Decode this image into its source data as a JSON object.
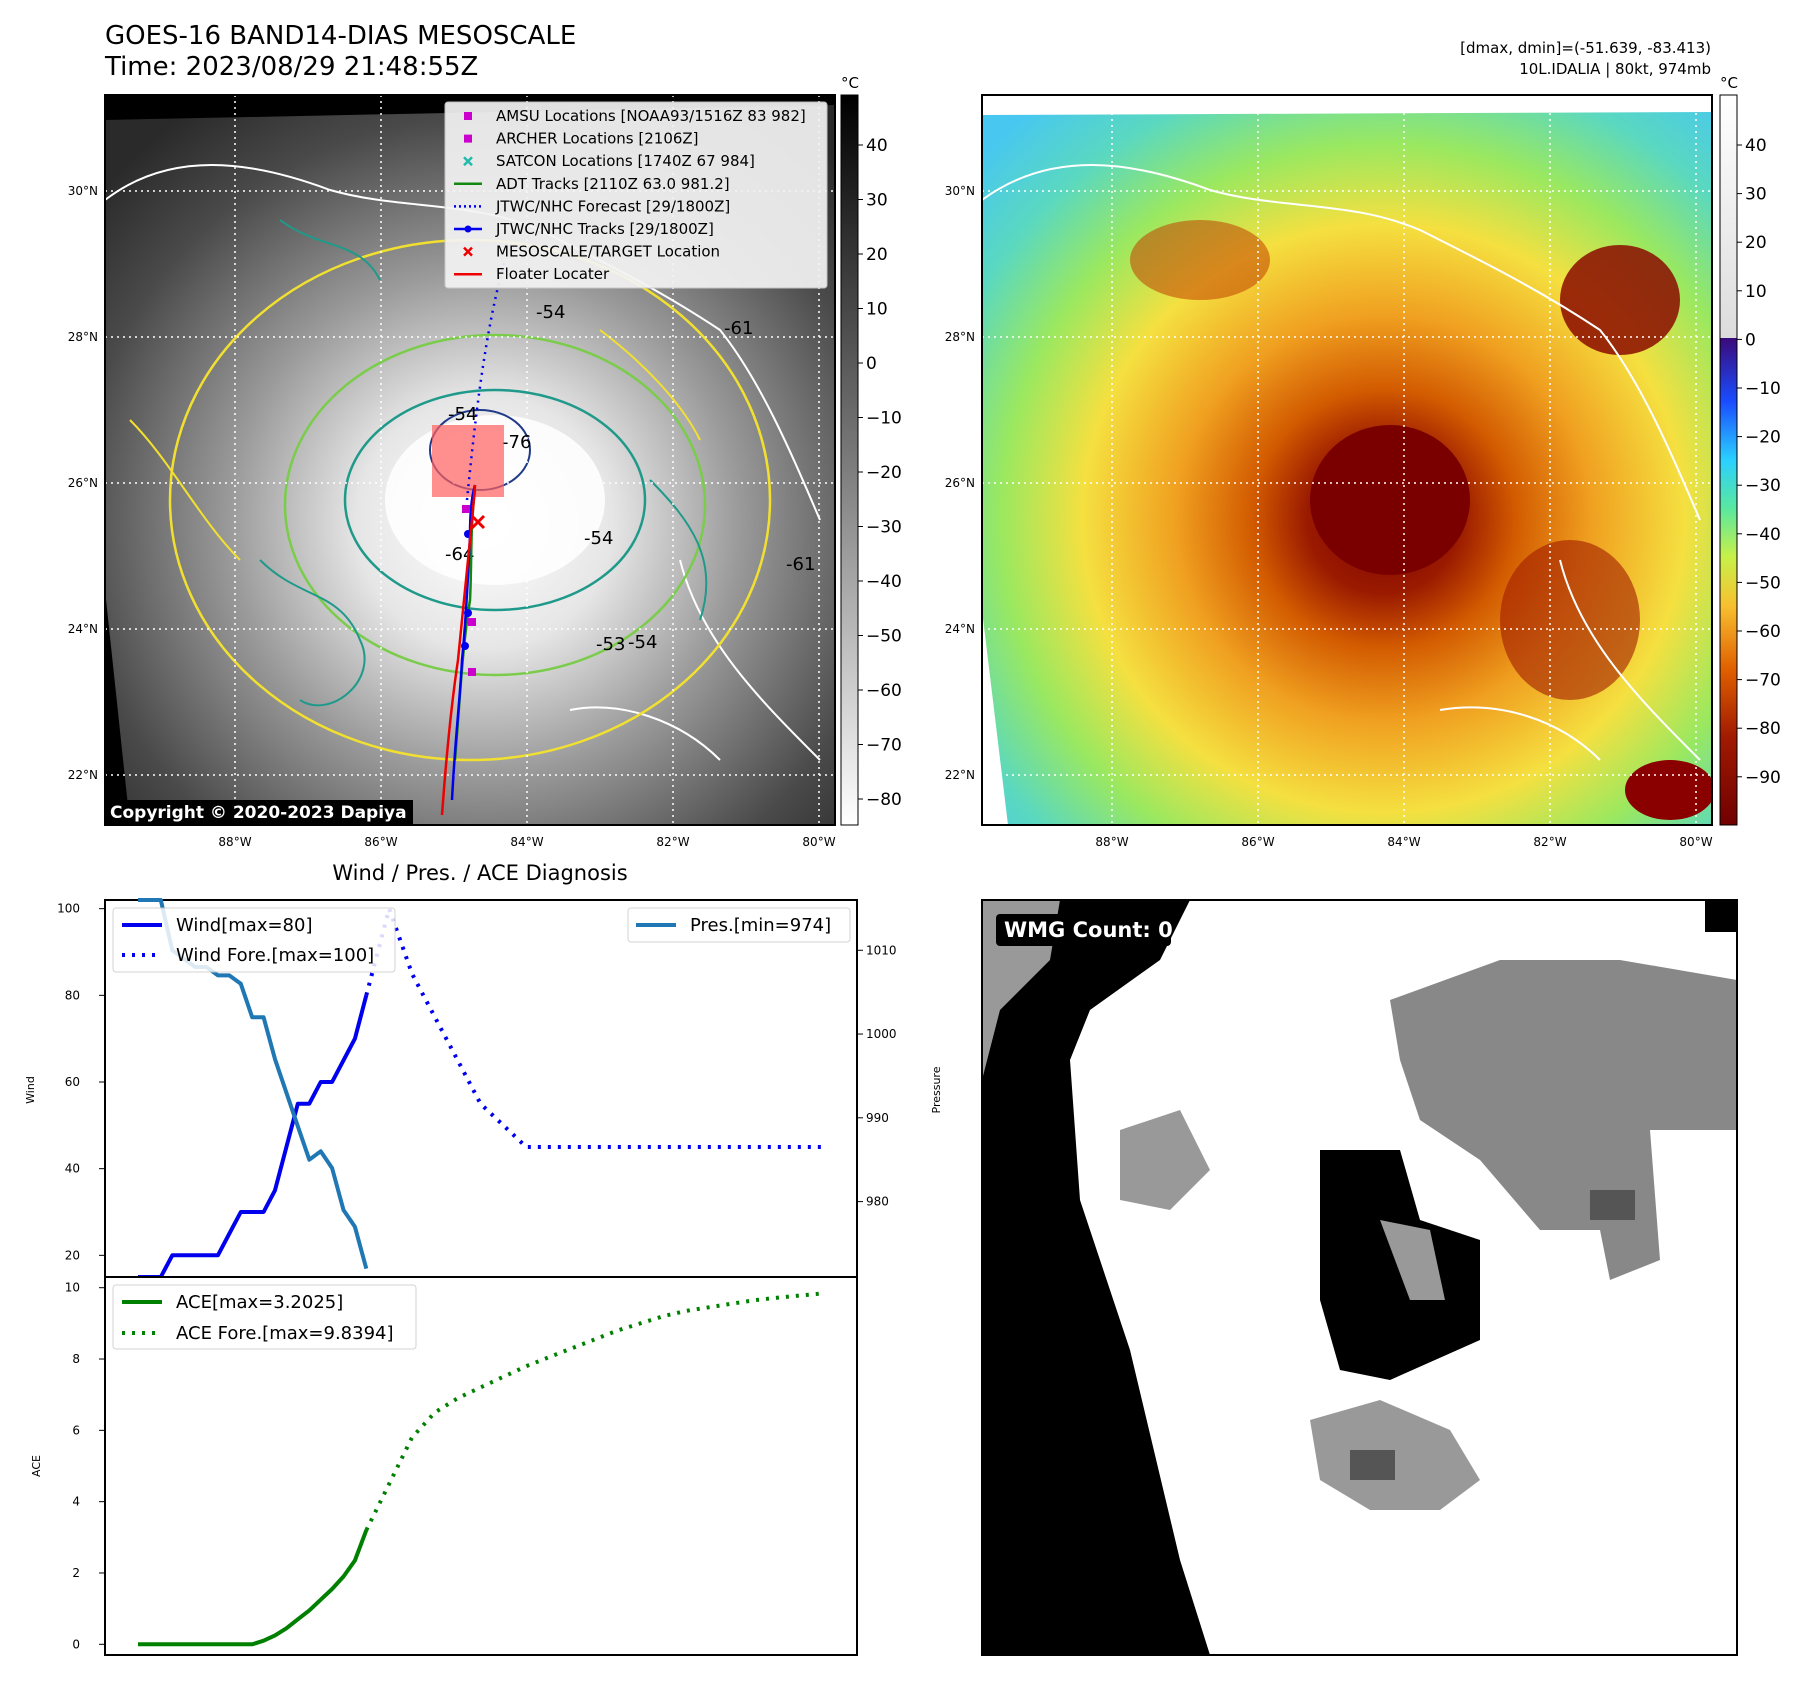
{
  "header": {
    "title": "GOES-16 BAND14-DIAS MESOSCALE",
    "time": "Time: 2023/08/29 21:48:55Z",
    "stats_line1": "[dmax, dmin]=(-51.639, -83.413)",
    "stats_line2": "10L.IDALIA | 80kt, 974mb"
  },
  "map_panels": {
    "lat_ticks": [
      "30°N",
      "28°N",
      "26°N",
      "24°N",
      "22°N"
    ],
    "lon_ticks": [
      "88°W",
      "86°W",
      "84°W",
      "82°W",
      "80°W"
    ],
    "copyright": "Copyright © 2020-2023 Dapiya",
    "contour_labels": [
      "-54",
      "-64",
      "-76",
      "-54",
      "-54",
      "-61",
      "-61",
      "-54",
      "-53"
    ],
    "legend": [
      {
        "label": "AMSU Locations [NOAA93/1516Z 83 982]",
        "marker": "square",
        "color": "#cc00cc"
      },
      {
        "label": "ARCHER Locations [2106Z]",
        "marker": "square",
        "color": "#cc00cc"
      },
      {
        "label": "SATCON Locations [1740Z 67 984]",
        "marker": "x",
        "color": "#22bbaa"
      },
      {
        "label": "ADT Tracks [2110Z 63.0 981.2]",
        "marker": "line",
        "color": "#118811"
      },
      {
        "label": "JTWC/NHC Forecast [29/1800Z]",
        "marker": "dotted",
        "color": "#0000ee"
      },
      {
        "label": "JTWC/NHC Tracks [29/1800Z]",
        "marker": "line-dot",
        "color": "#0000ee"
      },
      {
        "label": "MESOSCALE/TARGET Location",
        "marker": "x",
        "color": "#ee0000"
      },
      {
        "label": "Floater Locater",
        "marker": "line",
        "color": "#ee0000"
      }
    ],
    "colorbar_left": {
      "unit": "°C",
      "ticks": [
        "40",
        "30",
        "20",
        "10",
        "0",
        "−10",
        "−20",
        "−30",
        "−40",
        "−50",
        "−60",
        "−70",
        "−80"
      ]
    },
    "colorbar_right": {
      "unit": "°C",
      "ticks": [
        "40",
        "30",
        "20",
        "10",
        "0",
        "−10",
        "−20",
        "−30",
        "−40",
        "−50",
        "−60",
        "−70",
        "−80",
        "−90"
      ]
    }
  },
  "chart_data": [
    {
      "type": "line",
      "title": "Wind / Pres. / ACE Diagnosis",
      "ylabel": "Wind",
      "y2label": "Pressure",
      "ylim": [
        15,
        102
      ],
      "y2lim": [
        971,
        1016
      ],
      "yticks": [
        20,
        40,
        60,
        80,
        100
      ],
      "y2ticks": [
        980,
        990,
        1000,
        1010
      ],
      "series": [
        {
          "name": "Wind[max=80]",
          "style": "solid",
          "color": "#0000ee",
          "axis": "left",
          "x": [
            0,
            1,
            2,
            3,
            4,
            5,
            6,
            7,
            8,
            9,
            10,
            11,
            12,
            13,
            14,
            15,
            16,
            17,
            18,
            19,
            20
          ],
          "values": [
            15,
            15,
            15,
            20,
            20,
            20,
            20,
            20,
            25,
            30,
            30,
            30,
            35,
            45,
            55,
            55,
            60,
            60,
            65,
            70,
            80
          ]
        },
        {
          "name": "Wind Fore.[max=100]",
          "style": "dotted",
          "color": "#0000ee",
          "axis": "left",
          "x": [
            20,
            22,
            24,
            26,
            28,
            30,
            32,
            34,
            36,
            38,
            40,
            42,
            44,
            46,
            48,
            50,
            52,
            54,
            56,
            58,
            60
          ],
          "values": [
            80,
            100,
            85,
            75,
            65,
            55,
            50,
            45,
            45,
            45,
            45,
            45,
            45,
            45,
            45,
            45,
            45,
            45,
            45,
            45,
            45
          ]
        },
        {
          "name": "Pres.[min=974]",
          "style": "solid",
          "color": "#1f77b4",
          "axis": "right",
          "x": [
            0,
            1,
            2,
            3,
            4,
            5,
            6,
            7,
            8,
            9,
            10,
            11,
            12,
            13,
            14,
            15,
            16,
            17,
            18,
            19,
            20
          ],
          "values": [
            1016,
            1016,
            1016,
            1010,
            1009,
            1008,
            1008,
            1007,
            1007,
            1006,
            1002,
            1002,
            997,
            993,
            989,
            985,
            986,
            984,
            979,
            977,
            972
          ]
        }
      ]
    },
    {
      "type": "line",
      "ylabel": "ACE",
      "ylim": [
        -0.3,
        10.3
      ],
      "yticks": [
        0,
        2,
        4,
        6,
        8,
        10
      ],
      "series": [
        {
          "name": "ACE[max=3.2025]",
          "style": "solid",
          "color": "#008000",
          "x": [
            0,
            1,
            2,
            3,
            4,
            5,
            6,
            7,
            8,
            9,
            10,
            11,
            12,
            13,
            14,
            15,
            16,
            17,
            18,
            19,
            20
          ],
          "values": [
            0,
            0,
            0,
            0,
            0,
            0,
            0,
            0,
            0,
            0,
            0,
            0.1,
            0.25,
            0.45,
            0.7,
            0.95,
            1.25,
            1.55,
            1.9,
            2.35,
            3.2
          ]
        },
        {
          "name": "ACE Fore.[max=9.8394]",
          "style": "dotted",
          "color": "#008000",
          "x": [
            20,
            22,
            24,
            26,
            28,
            30,
            32,
            34,
            36,
            38,
            40,
            42,
            44,
            46,
            48,
            50,
            52,
            54,
            56,
            58,
            60
          ],
          "values": [
            3.2,
            4.5,
            5.8,
            6.5,
            6.9,
            7.2,
            7.5,
            7.8,
            8.05,
            8.3,
            8.55,
            8.8,
            9.0,
            9.2,
            9.35,
            9.45,
            9.55,
            9.65,
            9.72,
            9.78,
            9.84
          ]
        }
      ]
    }
  ],
  "wmg_panel": {
    "label": "WMG Count: 0"
  }
}
